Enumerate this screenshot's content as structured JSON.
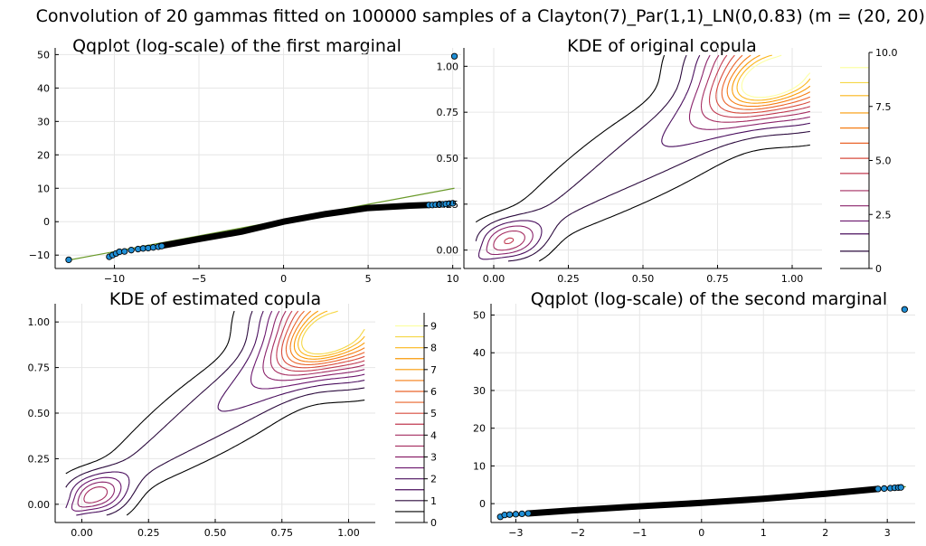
{
  "suptitle": "Convolution of 20 gammas fitted on 100000 samples of a Clayton(7)_Par(1,1)_LN(0,0.83) (m = (20, 20))",
  "colors": {
    "scatter_fill": "#1f8fd6",
    "scatter_stroke": "#000000",
    "reference_line": "#6a9a2a",
    "contour_scale": [
      "#000000",
      "#2b0a3d",
      "#4a0f5e",
      "#6b176e",
      "#8a226a",
      "#a52c60",
      "#c03a51",
      "#d84c3e",
      "#ea632a",
      "#f57d15",
      "#fa9a07",
      "#fbb61a",
      "#f5d746",
      "#fcffa4"
    ]
  },
  "chart_data": [
    {
      "id": "qq1",
      "type": "scatter",
      "title": "Qqplot (log-scale) of the first marginal",
      "xlim": [
        -13.5,
        10.5
      ],
      "ylim": [
        -14,
        52
      ],
      "xticks": [
        -10,
        -5,
        0,
        5,
        10
      ],
      "yticks": [
        -10,
        0,
        10,
        20,
        30,
        40,
        50
      ],
      "xtick_labels": [
        "−10",
        "−5",
        "0",
        "5",
        "10"
      ],
      "ytick_labels": [
        "−10",
        "0",
        "10",
        "20",
        "30",
        "40",
        "50"
      ],
      "reference_line": {
        "x": [
          -12.7,
          10.1
        ],
        "y": [
          -11.5,
          10.0
        ]
      },
      "points": {
        "x": [
          -12.7,
          -10.3,
          -10.1,
          -9.9,
          -9.7,
          -9.4,
          -9.0,
          -8.6,
          -8.3,
          -8.0,
          -7.7,
          -7.4,
          -7.2,
          8.6,
          8.8,
          9.0,
          9.2,
          9.4,
          9.6,
          9.8,
          10.0,
          10.1
        ],
        "y": [
          -11.4,
          -10.5,
          -10.0,
          -9.5,
          -9.0,
          -8.9,
          -8.5,
          -8.2,
          -8.0,
          -7.9,
          -7.7,
          -7.5,
          -7.3,
          5.0,
          5.0,
          5.1,
          5.1,
          5.2,
          5.3,
          5.4,
          5.5,
          49.5
        ]
      },
      "dense_curve": {
        "x": [
          -7.3,
          -5,
          -2.5,
          0,
          2.5,
          5,
          7.5,
          8.6
        ],
        "y": [
          -7.3,
          -5.2,
          -3.0,
          0,
          2.3,
          4.1,
          4.8,
          5.0
        ]
      }
    },
    {
      "id": "kde_orig",
      "type": "contour",
      "title": "KDE of original copula",
      "xlim": [
        -0.1,
        1.1
      ],
      "ylim": [
        -0.1,
        1.1
      ],
      "xticks": [
        0,
        0.25,
        0.5,
        0.75,
        1
      ],
      "yticks": [
        0,
        0.25,
        0.5,
        0.75,
        1
      ],
      "xtick_labels": [
        "0.00",
        "0.25",
        "0.50",
        "0.75",
        "1.00"
      ],
      "ytick_labels": [
        "0.00",
        "0.25",
        "0.50",
        "0.75",
        "1.00"
      ],
      "colorbar": {
        "ticks": [
          0,
          2.5,
          5.0,
          7.5,
          10.0
        ],
        "tick_labels": [
          "0",
          "2.5",
          "5.0",
          "7.5",
          "10.0"
        ],
        "min": 0,
        "max": 10,
        "levels": [
          0.8,
          1.6,
          2.2,
          2.9,
          3.6,
          4.4,
          5.1,
          5.8,
          6.5,
          7.2,
          8.0,
          8.6,
          9.3
        ]
      },
      "contour_levels": [
        0.5,
        1.3,
        2.1,
        2.9,
        3.7,
        4.5,
        5.3,
        6.1,
        6.9,
        7.7,
        8.5,
        9.3
      ]
    },
    {
      "id": "kde_est",
      "type": "contour",
      "title": "KDE of estimated copula",
      "xlim": [
        -0.1,
        1.1
      ],
      "ylim": [
        -0.1,
        1.1
      ],
      "xticks": [
        0,
        0.25,
        0.5,
        0.75,
        1
      ],
      "yticks": [
        0,
        0.25,
        0.5,
        0.75,
        1
      ],
      "xtick_labels": [
        "0.00",
        "0.25",
        "0.50",
        "0.75",
        "1.00"
      ],
      "ytick_labels": [
        "0.00",
        "0.25",
        "0.50",
        "0.75",
        "1.00"
      ],
      "colorbar": {
        "ticks": [
          0,
          1,
          2,
          3,
          4,
          5,
          6,
          7,
          8,
          9
        ],
        "tick_labels": [
          "0",
          "1",
          "2",
          "3",
          "4",
          "5",
          "6",
          "7",
          "8",
          "9"
        ],
        "min": 0,
        "max": 9.6,
        "levels": [
          0.5,
          1.0,
          1.5,
          2.0,
          2.5,
          3.0,
          3.5,
          4.0,
          4.5,
          5.0,
          5.5,
          6.0,
          6.5,
          7.0,
          7.5,
          8.0,
          8.5,
          9.0
        ]
      },
      "contour_levels": [
        0.5,
        1.2,
        1.9,
        2.6,
        3.3,
        4.0,
        4.7,
        5.4,
        6.1,
        6.8,
        7.5,
        8.2,
        8.9
      ]
    },
    {
      "id": "qq2",
      "type": "scatter",
      "title": "Qqplot (log-scale) of the second marginal",
      "xlim": [
        -3.4,
        3.45
      ],
      "ylim": [
        -5,
        53
      ],
      "xticks": [
        -3,
        -2,
        -1,
        0,
        1,
        2,
        3
      ],
      "yticks": [
        0,
        10,
        20,
        30,
        40,
        50
      ],
      "xtick_labels": [
        "−3",
        "−2",
        "−1",
        "0",
        "1",
        "2",
        "3"
      ],
      "ytick_labels": [
        "0",
        "10",
        "20",
        "30",
        "40",
        "50"
      ],
      "reference_line": {
        "x": [
          -3.25,
          3.3
        ],
        "y": [
          -3.5,
          4.5
        ]
      },
      "points": {
        "x": [
          -3.25,
          -3.18,
          -3.1,
          -3.0,
          -2.9,
          -2.8,
          2.85,
          2.95,
          3.05,
          3.12,
          3.18,
          3.22,
          3.28
        ],
        "y": [
          -3.5,
          -3.0,
          -2.9,
          -2.8,
          -2.7,
          -2.6,
          3.9,
          4.0,
          4.1,
          4.2,
          4.25,
          4.3,
          51.5
        ]
      },
      "dense_curve": {
        "x": [
          -2.8,
          -2,
          -1,
          0,
          1,
          2,
          2.85
        ],
        "y": [
          -2.6,
          -1.7,
          -0.7,
          0.2,
          1.3,
          2.6,
          3.9
        ]
      }
    }
  ]
}
